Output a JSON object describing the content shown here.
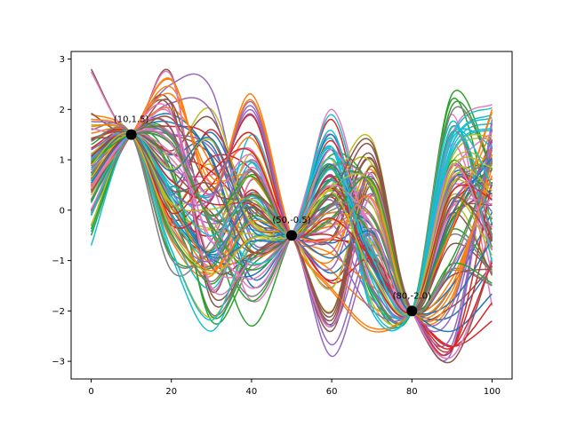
{
  "chart_data": {
    "type": "line",
    "title": "",
    "xlabel": "",
    "ylabel": "",
    "xlim": [
      -5,
      105
    ],
    "ylim": [
      -3.35,
      3.15
    ],
    "x_ticks": [
      0,
      20,
      40,
      60,
      80,
      100
    ],
    "y_ticks": [
      -3,
      -2,
      -1,
      0,
      1,
      2,
      3
    ],
    "x_tick_labels": [
      "0",
      "20",
      "40",
      "60",
      "80",
      "100"
    ],
    "y_tick_labels": [
      "−3",
      "−2",
      "−1",
      "0",
      "1",
      "2",
      "3"
    ],
    "grid": false,
    "legend": "none",
    "n_samples": 100,
    "x": [
      0,
      10,
      20,
      30,
      40,
      50,
      60,
      70,
      80,
      90,
      100
    ],
    "palette": [
      "#1f77b4",
      "#ff7f0e",
      "#2ca02c",
      "#d62728",
      "#9467bd",
      "#8c564b",
      "#e377c2",
      "#7f7f7f",
      "#bcbd22",
      "#17becf"
    ],
    "constraint_points": [
      {
        "x": 10,
        "y": 1.5,
        "label": "(10,1.5)"
      },
      {
        "x": 50,
        "y": -0.5,
        "label": "(50,-0.5)"
      },
      {
        "x": 80,
        "y": -2.0,
        "label": "(80,-2.0)"
      }
    ],
    "series_samples": [
      [
        1.2,
        1.5,
        0.4,
        -1.0,
        -1.3,
        -0.5,
        0.3,
        -0.9,
        -2.0,
        -1.2,
        0.5
      ],
      [
        0.5,
        1.5,
        2.6,
        0.4,
        2.3,
        -0.5,
        -1.6,
        -2.4,
        -2.0,
        -0.4,
        2.0
      ],
      [
        -0.5,
        1.5,
        0.9,
        -2.2,
        -1.1,
        -0.5,
        0.9,
        -1.7,
        -2.0,
        2.3,
        0.8
      ],
      [
        0.8,
        1.5,
        -0.2,
        -0.8,
        0.4,
        -0.5,
        1.8,
        -1.1,
        -2.0,
        -2.7,
        -2.2
      ],
      [
        0.2,
        1.5,
        2.5,
        2.4,
        -0.6,
        -0.5,
        -2.9,
        -0.9,
        -2.0,
        -2.8,
        1.8
      ],
      [
        2.8,
        1.5,
        2.7,
        -1.6,
        0.6,
        -0.5,
        -2.4,
        0.3,
        -2.0,
        -3.0,
        -1.0
      ],
      [
        0.0,
        1.5,
        0.8,
        0.7,
        1.2,
        -0.5,
        2.0,
        -0.7,
        -2.0,
        1.5,
        2.1
      ],
      [
        1.0,
        1.5,
        1.3,
        -0.1,
        0.8,
        -0.5,
        -0.2,
        0.6,
        -2.0,
        -1.2,
        -1.5
      ],
      [
        1.7,
        1.5,
        0.1,
        0.9,
        -0.8,
        -0.5,
        0.5,
        1.4,
        -2.0,
        0.3,
        -0.8
      ],
      [
        1.1,
        1.5,
        -0.9,
        -2.4,
        -0.7,
        -0.5,
        1.2,
        -2.0,
        -2.0,
        1.1,
        1.6
      ],
      [
        0.4,
        1.5,
        1.9,
        1.0,
        -1.5,
        -0.5,
        0.1,
        -0.3,
        -2.0,
        0.7,
        0.2
      ],
      [
        1.9,
        1.5,
        -0.6,
        -1.3,
        0.3,
        -0.5,
        -1.0,
        0.8,
        -2.0,
        -1.8,
        1.2
      ],
      [
        -0.3,
        1.5,
        1.5,
        -0.4,
        -2.3,
        -0.5,
        1.1,
        0.4,
        -2.0,
        2.2,
        -0.3
      ],
      [
        0.6,
        1.5,
        0.3,
        1.6,
        0.1,
        -0.5,
        -1.4,
        -0.5,
        -2.0,
        -0.4,
        1.4
      ],
      [
        1.4,
        1.5,
        -0.3,
        0.2,
        1.9,
        -0.5,
        0.7,
        -1.3,
        -2.0,
        0.9,
        -0.6
      ],
      [
        -0.1,
        1.5,
        2.1,
        -1.8,
        -0.9,
        -0.5,
        -0.6,
        1.0,
        -2.0,
        -0.2,
        0.4
      ],
      [
        0.9,
        1.5,
        0.6,
        0.5,
        -1.8,
        -0.5,
        1.5,
        -1.5,
        -2.0,
        1.9,
        -1.9
      ],
      [
        1.6,
        1.5,
        -1.2,
        -0.6,
        1.0,
        -0.5,
        0.0,
        0.1,
        -2.0,
        -1.5,
        1.0
      ],
      [
        0.3,
        1.5,
        1.1,
        2.0,
        -0.2,
        -0.5,
        -2.0,
        0.9,
        -2.0,
        0.1,
        -1.3
      ],
      [
        -0.7,
        1.5,
        0.2,
        -1.1,
        1.5,
        -0.5,
        0.4,
        -0.6,
        -2.0,
        1.3,
        1.9
      ]
    ],
    "annotations": [
      "(10,1.5)",
      "(50,-0.5)",
      "(80,-2.0)"
    ]
  }
}
